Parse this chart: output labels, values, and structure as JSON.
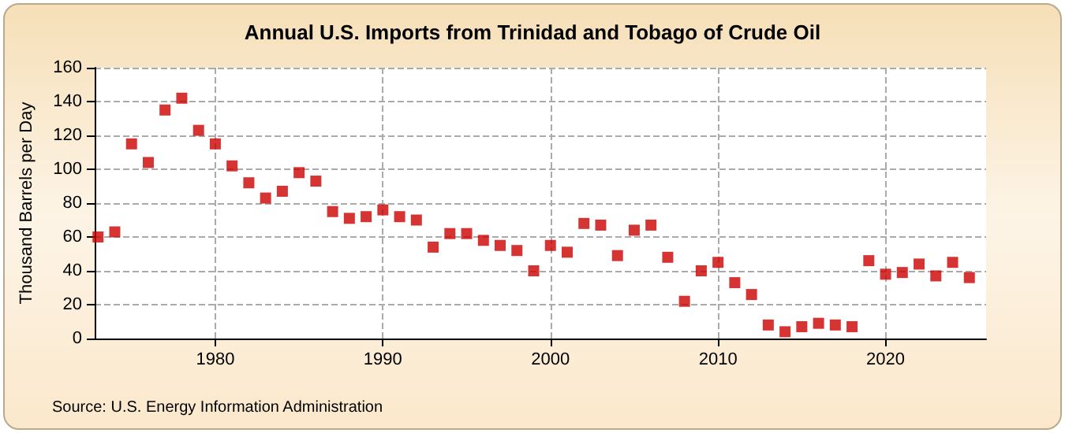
{
  "chart_data": {
    "type": "scatter",
    "title": "Annual U.S. Imports from Trinidad and Tobago of Crude Oil",
    "ylabel": "Thousand Barrels per Day",
    "x": [
      1973,
      1974,
      1975,
      1976,
      1977,
      1978,
      1979,
      1980,
      1981,
      1982,
      1983,
      1984,
      1985,
      1986,
      1987,
      1988,
      1989,
      1990,
      1991,
      1992,
      1993,
      1994,
      1995,
      1996,
      1997,
      1998,
      1999,
      2000,
      2001,
      2002,
      2003,
      2004,
      2005,
      2006,
      2007,
      2008,
      2009,
      2010,
      2011,
      2012,
      2013,
      2014,
      2015,
      2016,
      2017,
      2018,
      2019,
      2020,
      2021,
      2022,
      2023,
      2024,
      2025
    ],
    "series": [
      {
        "color": "#cc0000",
        "values": [
          60,
          63,
          115,
          104,
          135,
          142,
          123,
          115,
          102,
          92,
          83,
          87,
          98,
          93,
          75,
          71,
          72,
          76,
          72,
          70,
          54,
          62,
          62,
          58,
          55,
          52,
          40,
          55,
          51,
          68,
          67,
          49,
          64,
          67,
          48,
          22,
          40,
          45,
          33,
          26,
          8,
          4,
          7,
          9,
          8,
          7,
          46,
          38,
          39,
          44,
          37,
          45,
          36
        ]
      }
    ],
    "xlim": [
      1972.8,
      2026
    ],
    "xticks": [
      1980,
      1990,
      2000,
      2010,
      2020
    ],
    "ylim": [
      0,
      160
    ],
    "yticks": [
      0,
      20,
      40,
      60,
      80,
      100,
      120,
      140,
      160
    ],
    "grid": true,
    "marker": "square",
    "annotations": [
      "Source: U.S. Energy Information Administration"
    ]
  }
}
